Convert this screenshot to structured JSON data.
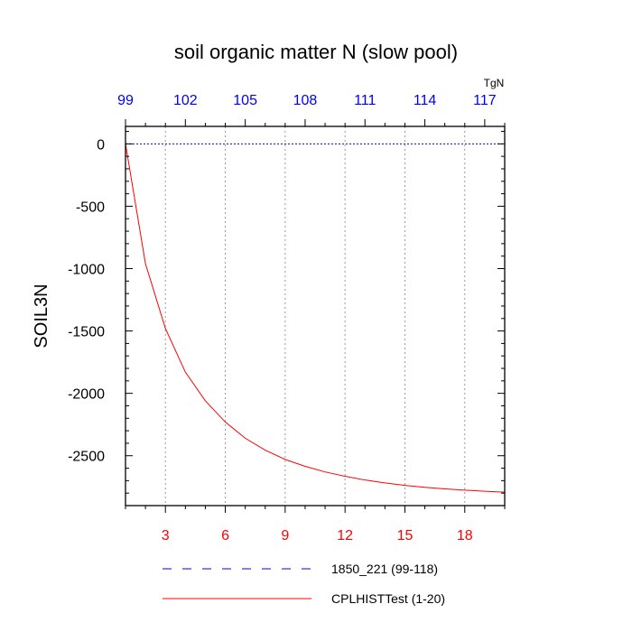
{
  "chart_data": {
    "type": "line",
    "title": "soil organic matter N (slow pool)",
    "ylabel": "SOIL3N",
    "top_axis_units": "TgN",
    "ylim": [
      -2900,
      140
    ],
    "yticks": [
      0,
      -500,
      -1000,
      -1500,
      -2000,
      -2500
    ],
    "ytick_labels": [
      "0",
      "-500",
      "-1000",
      "-1500",
      "-2000",
      "-2500"
    ],
    "bottom_axis": {
      "color": "#ff0000",
      "xlim": [
        1,
        20
      ],
      "ticks": [
        3,
        6,
        9,
        12,
        15,
        18
      ],
      "tick_labels": [
        "3",
        "6",
        "9",
        "12",
        "15",
        "18"
      ]
    },
    "top_axis": {
      "color": "#0000ff",
      "xlim": [
        99,
        118
      ],
      "ticks": [
        99,
        102,
        105,
        108,
        111,
        114,
        117
      ],
      "tick_labels": [
        "99",
        "102",
        "105",
        "108",
        "111",
        "114",
        "117"
      ]
    },
    "grid": "vertical dotted at bottom-axis ticks",
    "series": [
      {
        "name": "1850_221 (99-118)",
        "color": "#0000ff",
        "style": "dashed",
        "axis": "top",
        "x": [
          99,
          100,
          101,
          102,
          103,
          104,
          105,
          106,
          107,
          108,
          109,
          110,
          111,
          112,
          113,
          114,
          115,
          116,
          117,
          118
        ],
        "values": [
          0,
          0,
          0,
          0,
          0,
          0,
          0,
          0,
          0,
          0,
          0,
          0,
          0,
          0,
          0,
          0,
          0,
          0,
          0,
          0
        ]
      },
      {
        "name": "CPLHISTTest (1-20)",
        "color": "#ff0000",
        "style": "solid",
        "axis": "bottom",
        "x": [
          1,
          2,
          3,
          4,
          5,
          6,
          7,
          8,
          9,
          10,
          11,
          12,
          13,
          14,
          15,
          16,
          17,
          18,
          19,
          20
        ],
        "values": [
          0,
          -960,
          -1480,
          -1830,
          -2060,
          -2230,
          -2360,
          -2455,
          -2530,
          -2585,
          -2630,
          -2665,
          -2695,
          -2718,
          -2738,
          -2753,
          -2766,
          -2776,
          -2785,
          -2792
        ]
      }
    ],
    "legend": [
      {
        "label": "1850_221 (99-118)",
        "color": "#0000ff",
        "style": "dashed"
      },
      {
        "label": "CPLHISTTest (1-20)",
        "color": "#ff0000",
        "style": "solid"
      }
    ]
  }
}
